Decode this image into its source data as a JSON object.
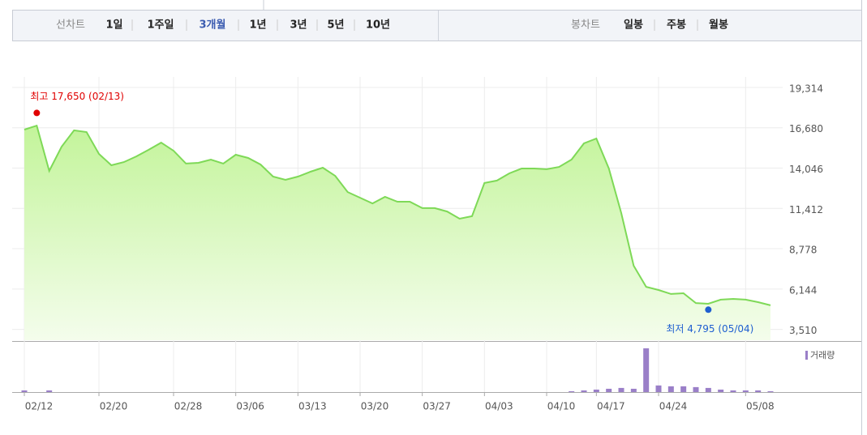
{
  "toolbar": {
    "line_label": "선차트",
    "periods": [
      "1일",
      "1주일",
      "3개월",
      "1년",
      "3년",
      "5년",
      "10년"
    ],
    "selected_period": 2,
    "candle_label": "봉차트",
    "candles": [
      "일봉",
      "주봉",
      "월봉"
    ]
  },
  "chart_data": {
    "type": "area",
    "color": "#7ed957",
    "categories": [
      "02/12",
      null,
      null,
      null,
      null,
      null,
      "02/20",
      null,
      null,
      null,
      null,
      null,
      "02/28",
      null,
      null,
      null,
      null,
      "03/06",
      null,
      null,
      null,
      null,
      "03/13",
      null,
      null,
      null,
      null,
      "03/20",
      null,
      null,
      null,
      null,
      "03/27",
      null,
      null,
      null,
      null,
      "04/03",
      null,
      null,
      null,
      null,
      "04/10",
      null,
      null,
      null,
      "04/17",
      null,
      null,
      null,
      null,
      "04/24",
      null,
      null,
      null,
      null,
      null,
      null,
      "05/08",
      null,
      null
    ],
    "values": [
      16560,
      16820,
      13860,
      15450,
      16510,
      16400,
      14970,
      14230,
      14440,
      14810,
      15240,
      15710,
      15180,
      14340,
      14390,
      14600,
      14340,
      14920,
      14710,
      14280,
      13490,
      13280,
      13490,
      13810,
      14070,
      13540,
      12480,
      12110,
      11740,
      12170,
      11850,
      11850,
      11430,
      11430,
      11210,
      10740,
      10900,
      13070,
      13230,
      13700,
      14020,
      14020,
      13970,
      14120,
      14600,
      15660,
      15980,
      14020,
      11110,
      7670,
      6290,
      6080,
      5820,
      5870,
      5230,
      5180,
      5450,
      5500,
      5450,
      5290,
      5080
    ],
    "ylim": [
      2800,
      20000
    ],
    "yticks": [
      {
        "value": 3510,
        "label": "3,510"
      },
      {
        "value": 6144,
        "label": "6,144"
      },
      {
        "value": 8778,
        "label": "8,778"
      },
      {
        "value": 11412,
        "label": "11,412"
      },
      {
        "value": 14046,
        "label": "14,046"
      },
      {
        "value": 16680,
        "label": "16,680"
      },
      {
        "value": 19314,
        "label": "19,314"
      }
    ],
    "grid": true,
    "annotations": [
      {
        "text": "최고 17,650 (02/13)",
        "value": 17650,
        "index": 1,
        "color": "#e00000"
      },
      {
        "text": "최저 4,795 (05/04)",
        "value": 4795,
        "index": 55,
        "color": "#1f5fd0"
      }
    ],
    "volume": {
      "name": "거래량",
      "color": "#9a7fc8",
      "values": [
        2,
        0,
        2,
        0,
        0,
        0,
        0,
        0,
        0,
        0,
        0,
        0,
        0,
        0,
        0,
        0,
        0,
        0,
        0,
        0,
        0,
        0,
        0,
        0,
        0,
        0,
        0,
        0,
        0,
        0,
        0,
        0,
        0,
        0,
        0,
        0,
        0,
        0,
        0,
        0,
        0,
        0,
        0,
        0,
        1,
        2,
        3,
        4,
        5,
        4,
        53,
        8,
        7,
        7,
        6,
        5,
        3,
        2,
        2,
        2,
        1
      ]
    }
  }
}
